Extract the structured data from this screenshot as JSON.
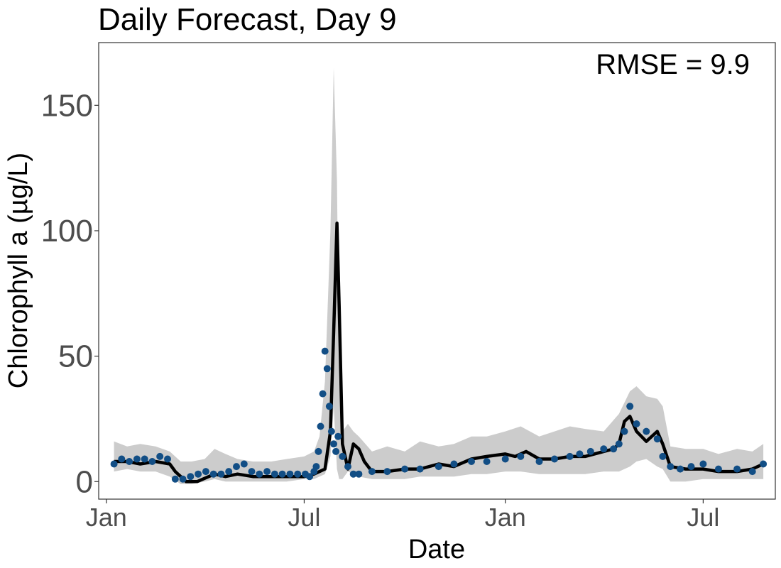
{
  "chart_data": {
    "type": "line",
    "title": "Daily Forecast, Day 9",
    "xlabel": "Date",
    "ylabel": "Chlorophyll a (µg/L)",
    "annotation": "RMSE = 9.9",
    "x_ticks": [
      "Jan",
      "Jul",
      "Jan",
      "Jul"
    ],
    "x_tick_dates": [
      "2018-01-01",
      "2018-07-01",
      "2019-01-01",
      "2019-07-01"
    ],
    "xlim": [
      "2017-12-25",
      "2019-09-05"
    ],
    "y_ticks": [
      0,
      50,
      100,
      150
    ],
    "ylim": [
      -7,
      175
    ],
    "grid": false,
    "colors": {
      "forecast": "#000000",
      "interval": "#cccccc",
      "observed": "#124e85"
    },
    "series": [
      {
        "type": "band",
        "x": [
          "2018-01-08",
          "2018-01-20",
          "2018-02-01",
          "2018-02-15",
          "2018-02-28",
          "2018-03-10",
          "2018-03-20",
          "2018-04-01",
          "2018-04-10",
          "2018-04-20",
          "2018-05-01",
          "2018-05-15",
          "2018-06-01",
          "2018-06-15",
          "2018-07-01",
          "2018-07-10",
          "2018-07-15",
          "2018-07-20",
          "2018-07-25",
          "2018-07-28",
          "2018-07-31",
          "2018-08-02",
          "2018-08-05",
          "2018-08-10",
          "2018-08-15",
          "2018-08-20",
          "2018-09-01",
          "2018-09-15",
          "2018-10-01",
          "2018-10-15",
          "2018-11-01",
          "2018-11-15",
          "2018-12-01",
          "2018-12-15",
          "2019-01-01",
          "2019-01-15",
          "2019-02-01",
          "2019-02-15",
          "2019-03-01",
          "2019-03-15",
          "2019-04-01",
          "2019-04-15",
          "2019-04-25",
          "2019-05-01",
          "2019-05-10",
          "2019-05-20",
          "2019-05-25",
          "2019-06-01",
          "2019-06-15",
          "2019-07-01",
          "2019-07-15",
          "2019-08-01",
          "2019-08-15",
          "2019-08-25"
        ],
        "lower": [
          4,
          5,
          4,
          4,
          2,
          -1,
          -1,
          0,
          1,
          0,
          0,
          0,
          0,
          0,
          1,
          1,
          2,
          3,
          10,
          30,
          5,
          1,
          1,
          4,
          3,
          2,
          1,
          1,
          1,
          2,
          2,
          2,
          3,
          3,
          4,
          4,
          3,
          3,
          3,
          3,
          4,
          4,
          6,
          8,
          9,
          6,
          5,
          0,
          0,
          1,
          1,
          1,
          1,
          1
        ],
        "upper": [
          16,
          14,
          15,
          14,
          12,
          8,
          8,
          9,
          13,
          11,
          9,
          8,
          8,
          9,
          10,
          12,
          18,
          40,
          100,
          165,
          120,
          40,
          20,
          23,
          20,
          18,
          12,
          14,
          12,
          16,
          14,
          15,
          18,
          18,
          20,
          22,
          18,
          20,
          22,
          21,
          20,
          27,
          36,
          38,
          34,
          33,
          30,
          14,
          13,
          13,
          11,
          13,
          12,
          15
        ]
      },
      {
        "name": "",
        "type": "line",
        "x": [
          "2018-01-08",
          "2018-01-20",
          "2018-02-01",
          "2018-02-15",
          "2018-02-28",
          "2018-03-05",
          "2018-03-15",
          "2018-03-25",
          "2018-04-10",
          "2018-04-20",
          "2018-05-01",
          "2018-05-15",
          "2018-06-01",
          "2018-06-15",
          "2018-07-01",
          "2018-07-10",
          "2018-07-20",
          "2018-07-25",
          "2018-07-28",
          "2018-07-31",
          "2018-08-02",
          "2018-08-05",
          "2018-08-10",
          "2018-08-15",
          "2018-08-20",
          "2018-08-25",
          "2018-09-01",
          "2018-09-15",
          "2018-10-01",
          "2018-10-15",
          "2018-11-01",
          "2018-11-15",
          "2018-12-01",
          "2018-12-15",
          "2019-01-01",
          "2019-01-10",
          "2019-01-20",
          "2019-02-01",
          "2019-02-15",
          "2019-03-01",
          "2019-03-15",
          "2019-04-01",
          "2019-04-10",
          "2019-04-15",
          "2019-04-20",
          "2019-04-25",
          "2019-05-01",
          "2019-05-10",
          "2019-05-20",
          "2019-05-25",
          "2019-06-01",
          "2019-06-15",
          "2019-07-01",
          "2019-07-15",
          "2019-08-01",
          "2019-08-15",
          "2019-08-25"
        ],
        "y": [
          8,
          8,
          7,
          8,
          7,
          4,
          0,
          0,
          3,
          2,
          3,
          2,
          2,
          2,
          2,
          3,
          5,
          20,
          60,
          103,
          70,
          15,
          5,
          15,
          13,
          8,
          4,
          4,
          5,
          5,
          7,
          6,
          9,
          10,
          11,
          10,
          12,
          9,
          9,
          10,
          10,
          12,
          13,
          15,
          24,
          26,
          20,
          16,
          20,
          15,
          6,
          5,
          5,
          4,
          4,
          5,
          7
        ]
      },
      {
        "name": "",
        "type": "scatter",
        "x": [
          "2018-01-08",
          "2018-01-15",
          "2018-01-22",
          "2018-01-29",
          "2018-02-05",
          "2018-02-12",
          "2018-02-19",
          "2018-02-26",
          "2018-03-05",
          "2018-03-12",
          "2018-03-19",
          "2018-03-26",
          "2018-04-02",
          "2018-04-09",
          "2018-04-16",
          "2018-04-23",
          "2018-04-30",
          "2018-05-07",
          "2018-05-14",
          "2018-05-21",
          "2018-05-28",
          "2018-06-04",
          "2018-06-11",
          "2018-06-18",
          "2018-06-25",
          "2018-07-02",
          "2018-07-06",
          "2018-07-10",
          "2018-07-12",
          "2018-07-14",
          "2018-07-16",
          "2018-07-18",
          "2018-07-20",
          "2018-07-22",
          "2018-07-24",
          "2018-07-26",
          "2018-07-28",
          "2018-07-30",
          "2018-08-01",
          "2018-08-05",
          "2018-08-10",
          "2018-08-15",
          "2018-08-20",
          "2018-09-01",
          "2018-09-15",
          "2018-10-01",
          "2018-10-15",
          "2018-11-01",
          "2018-11-15",
          "2018-12-01",
          "2018-12-15",
          "2019-01-01",
          "2019-01-15",
          "2019-02-01",
          "2019-02-15",
          "2019-03-01",
          "2019-03-10",
          "2019-03-20",
          "2019-04-01",
          "2019-04-10",
          "2019-04-15",
          "2019-04-20",
          "2019-04-25",
          "2019-05-01",
          "2019-05-10",
          "2019-05-20",
          "2019-05-25",
          "2019-06-01",
          "2019-06-10",
          "2019-06-20",
          "2019-07-01",
          "2019-07-15",
          "2019-08-01",
          "2019-08-15",
          "2019-08-25"
        ],
        "y": [
          7,
          9,
          8,
          9,
          9,
          8,
          10,
          9,
          1,
          1,
          2,
          3,
          4,
          3,
          3,
          4,
          6,
          7,
          4,
          3,
          4,
          3,
          3,
          3,
          3,
          3,
          2,
          4,
          6,
          12,
          22,
          35,
          52,
          45,
          30,
          20,
          15,
          12,
          18,
          10,
          6,
          3,
          3,
          4,
          4,
          5,
          5,
          6,
          7,
          8,
          8,
          9,
          10,
          8,
          9,
          10,
          11,
          12,
          13,
          13,
          15,
          20,
          30,
          23,
          20,
          17,
          10,
          6,
          5,
          6,
          7,
          5,
          5,
          4,
          7
        ]
      }
    ]
  }
}
